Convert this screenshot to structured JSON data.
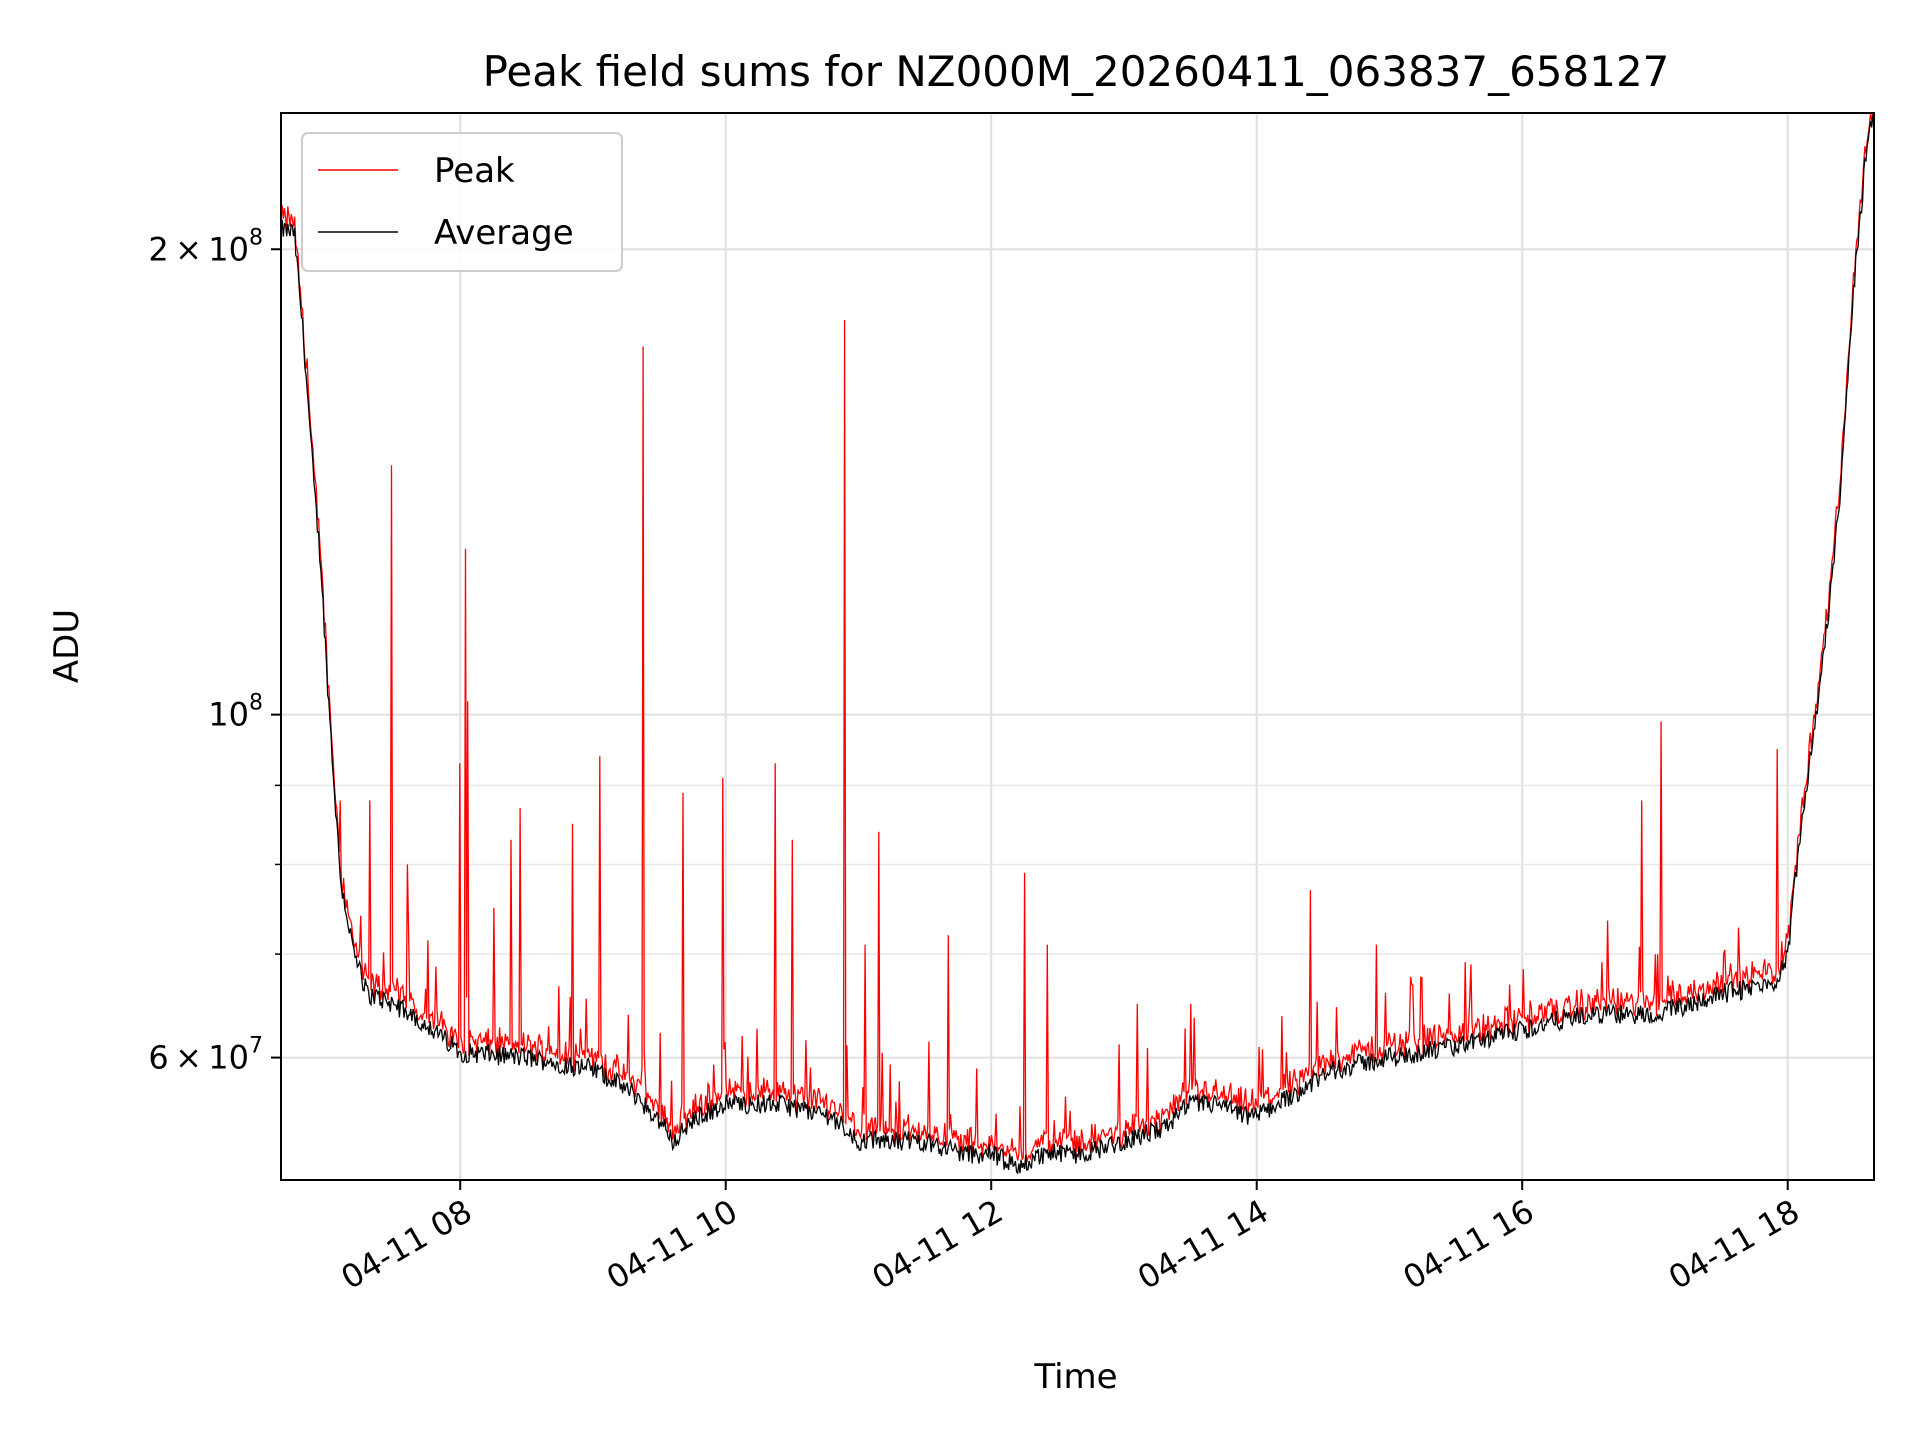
{
  "chart_data": {
    "type": "line",
    "title": "Peak field sums for NZ000M_20260411_063837_658127",
    "xlabel": "Time",
    "ylabel": "ADU",
    "yscale": "log",
    "ylim": [
      50000000,
      245000000
    ],
    "xlim_hours": [
      6.65,
      18.65
    ],
    "grid": true,
    "legend_position": "top-left",
    "x_ticks": [
      {
        "hour": 8,
        "label": "04-11 08"
      },
      {
        "hour": 10,
        "label": "04-11 10"
      },
      {
        "hour": 12,
        "label": "04-11 12"
      },
      {
        "hour": 14,
        "label": "04-11 14"
      },
      {
        "hour": 16,
        "label": "04-11 16"
      },
      {
        "hour": 18,
        "label": "04-11 18"
      }
    ],
    "y_major_ticks": [
      {
        "value": 60000000,
        "mantissa": "6",
        "exponent": "7"
      },
      {
        "value": 100000000,
        "mantissa": "",
        "exponent": "8"
      },
      {
        "value": 200000000,
        "mantissa": "2",
        "exponent": "8"
      }
    ],
    "y_minor_ticks": [
      70000000,
      80000000,
      90000000
    ],
    "series": [
      {
        "name": "Peak",
        "color": "#ff0000"
      },
      {
        "name": "Average",
        "color": "#000000"
      }
    ],
    "baseline": {
      "hour": [
        6.65,
        6.75,
        6.82,
        6.9,
        6.95,
        7.0,
        7.05,
        7.1,
        7.2,
        7.3,
        7.5,
        7.75,
        8.0,
        8.5,
        9.0,
        9.3,
        9.55,
        9.6,
        9.8,
        10.0,
        10.4,
        10.8,
        11.0,
        11.5,
        11.8,
        12.0,
        12.2,
        12.4,
        12.7,
        13.0,
        13.3,
        13.5,
        13.7,
        13.9,
        14.0,
        14.3,
        14.6,
        15.0,
        15.5,
        16.0,
        16.3,
        16.6,
        17.0,
        17.5,
        17.9,
        18.0,
        18.1,
        18.2,
        18.3,
        18.4,
        18.5,
        18.6,
        18.65
      ],
      "average": [
        206000000,
        205000000,
        175000000,
        140000000,
        125000000,
        105000000,
        90000000,
        78000000,
        70000000,
        66000000,
        65000000,
        63000000,
        60500000,
        60000000,
        59000000,
        57000000,
        54000000,
        53000000,
        55000000,
        56000000,
        56000000,
        55000000,
        53000000,
        53000000,
        52000000,
        52000000,
        51000000,
        52000000,
        52000000,
        53000000,
        54000000,
        56000000,
        56000000,
        55000000,
        55000000,
        57000000,
        59000000,
        60000000,
        61000000,
        62500000,
        63500000,
        64000000,
        64000000,
        66000000,
        67000000,
        70000000,
        85000000,
        98000000,
        115000000,
        140000000,
        190000000,
        235000000,
        245000000
      ]
    },
    "peak_spikes": [
      {
        "hour": 6.85,
        "value": 170000000
      },
      {
        "hour": 7.1,
        "value": 88000000
      },
      {
        "hour": 7.32,
        "value": 88000000
      },
      {
        "hour": 7.48,
        "value": 145000000
      },
      {
        "hour": 7.6,
        "value": 80000000
      },
      {
        "hour": 8.0,
        "value": 93000000
      },
      {
        "hour": 8.04,
        "value": 128000000
      },
      {
        "hour": 8.06,
        "value": 102000000
      },
      {
        "hour": 8.25,
        "value": 75000000
      },
      {
        "hour": 8.38,
        "value": 83000000
      },
      {
        "hour": 8.45,
        "value": 87000000
      },
      {
        "hour": 8.85,
        "value": 85000000
      },
      {
        "hour": 9.05,
        "value": 94000000
      },
      {
        "hour": 9.38,
        "value": 173000000
      },
      {
        "hour": 9.68,
        "value": 89000000
      },
      {
        "hour": 9.98,
        "value": 91000000
      },
      {
        "hour": 10.37,
        "value": 93000000
      },
      {
        "hour": 10.5,
        "value": 83000000
      },
      {
        "hour": 10.9,
        "value": 180000000
      },
      {
        "hour": 11.05,
        "value": 71000000
      },
      {
        "hour": 11.15,
        "value": 84000000
      },
      {
        "hour": 11.68,
        "value": 72000000
      },
      {
        "hour": 12.25,
        "value": 79000000
      },
      {
        "hour": 12.42,
        "value": 71000000
      },
      {
        "hour": 13.1,
        "value": 65000000
      },
      {
        "hour": 13.5,
        "value": 65000000
      },
      {
        "hour": 14.4,
        "value": 77000000
      },
      {
        "hour": 14.9,
        "value": 71000000
      },
      {
        "hour": 15.45,
        "value": 66000000
      },
      {
        "hour": 16.9,
        "value": 88000000
      },
      {
        "hour": 17.05,
        "value": 99000000
      },
      {
        "hour": 17.92,
        "value": 95000000
      }
    ]
  }
}
